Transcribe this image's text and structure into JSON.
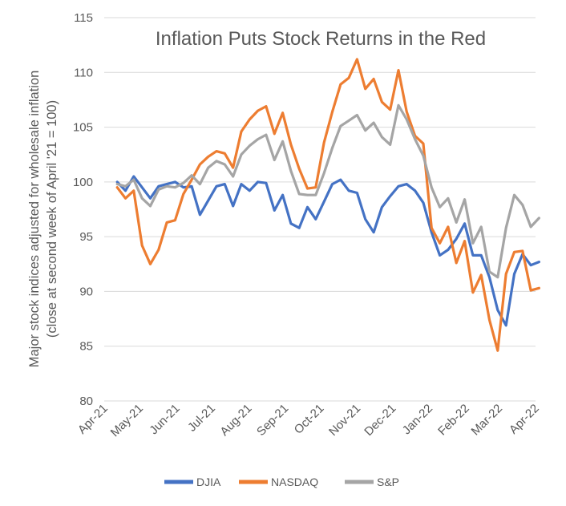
{
  "chart_data": {
    "type": "line",
    "title": "Inflation Puts Stock Returns in the Red",
    "xlabel": "",
    "ylabel_line1": "Major stock indices adjusted for wholesale inflation",
    "ylabel_line2": "(close at second week of April '21 = 100)",
    "ylim": [
      80,
      115
    ],
    "y_ticks": [
      "80",
      "85",
      "90",
      "95",
      "100",
      "105",
      "110",
      "115"
    ],
    "x_ticks": [
      "Apr-21",
      "May-21",
      "Jun-21",
      "Jul-21",
      "Aug-21",
      "Sep-21",
      "Oct-21",
      "Nov-21",
      "Dec-21",
      "Jan-22",
      "Feb-22",
      "Mar-22",
      "Apr-22"
    ],
    "grid": "horizontal",
    "legend_position": "bottom",
    "x_dates": [
      "2021-04-12",
      "2021-04-19",
      "2021-04-26",
      "2021-05-03",
      "2021-05-10",
      "2021-05-17",
      "2021-05-24",
      "2021-05-31",
      "2021-06-07",
      "2021-06-14",
      "2021-06-21",
      "2021-06-28",
      "2021-07-05",
      "2021-07-12",
      "2021-07-19",
      "2021-07-26",
      "2021-08-02",
      "2021-08-09",
      "2021-08-16",
      "2021-08-23",
      "2021-08-30",
      "2021-09-06",
      "2021-09-13",
      "2021-09-20",
      "2021-09-27",
      "2021-10-04",
      "2021-10-11",
      "2021-10-18",
      "2021-10-25",
      "2021-11-01",
      "2021-11-08",
      "2021-11-15",
      "2021-11-22",
      "2021-11-29",
      "2021-12-06",
      "2021-12-13",
      "2021-12-20",
      "2021-12-27",
      "2022-01-03",
      "2022-01-10",
      "2022-01-17",
      "2022-01-24",
      "2022-01-31",
      "2022-02-07",
      "2022-02-14",
      "2022-02-21",
      "2022-02-28",
      "2022-03-07",
      "2022-03-14",
      "2022-03-21",
      "2022-03-28",
      "2022-04-04"
    ],
    "series": [
      {
        "name": "DJIA",
        "color": "#4472c4",
        "values": [
          100,
          99.2,
          100.5,
          99.5,
          98.5,
          99.6,
          99.8,
          100,
          99.5,
          99.6,
          97,
          98.3,
          99.6,
          99.8,
          97.8,
          99.8,
          99.2,
          100,
          99.9,
          97.4,
          98.8,
          96.2,
          95.8,
          97.7,
          96.6,
          98.2,
          99.8,
          100.2,
          99.2,
          99,
          96.6,
          95.4,
          97.7,
          98.7,
          99.6,
          99.8,
          99.2,
          98.1,
          95.4,
          93.3,
          93.8,
          94.8,
          96.2,
          93.3,
          93.3,
          91.3,
          88.3,
          86.9,
          91.6,
          93.4,
          92.4,
          92.7
        ]
      },
      {
        "name": "NASDAQ",
        "color": "#ed7d31",
        "values": [
          99.5,
          98.5,
          99.2,
          94.2,
          92.5,
          93.8,
          96.3,
          96.5,
          98.9,
          100.2,
          101.6,
          102.3,
          102.8,
          102.6,
          101.3,
          104.6,
          105.7,
          106.5,
          106.9,
          104.4,
          106.3,
          103.4,
          101.2,
          99.4,
          99.5,
          103.6,
          106.4,
          108.9,
          109.5,
          111.2,
          108.5,
          109.4,
          107.3,
          106.6,
          110.2,
          106.4,
          104.2,
          103.5,
          95.8,
          94.4,
          95.9,
          92.6,
          94.6,
          89.9,
          91.5,
          87.4,
          84.6,
          91.6,
          93.6,
          93.7,
          90.1,
          90.3
        ]
      },
      {
        "name": "S&P",
        "color": "#a5a5a5",
        "values": [
          99.8,
          99.6,
          100.2,
          98.5,
          97.8,
          99.3,
          99.6,
          99.5,
          99.9,
          100.6,
          99.8,
          101.3,
          101.9,
          101.6,
          100.5,
          102.5,
          103.3,
          103.9,
          104.3,
          102,
          103.7,
          101,
          98.9,
          98.8,
          98.8,
          100.8,
          103.1,
          105.1,
          105.6,
          106.1,
          104.7,
          105.4,
          104.1,
          103.4,
          107,
          105.7,
          103.9,
          102.4,
          99.5,
          97.7,
          98.5,
          96.3,
          98.4,
          94.4,
          95.9,
          91.8,
          91.3,
          95.8,
          98.8,
          97.9,
          95.9,
          96.7
        ]
      }
    ]
  }
}
